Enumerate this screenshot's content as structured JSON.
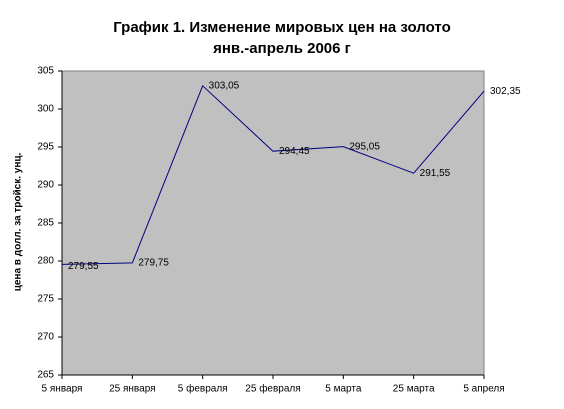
{
  "chart_data": {
    "type": "line",
    "title": "График 1. Изменение мировых цен на золото",
    "subtitle": "янв.-апрель 2006 г",
    "y_label": "цена в долл. за тройск. унц.",
    "categories": [
      "5 января",
      "25 января",
      "5 февраля",
      "25 февраля",
      "5 марта",
      "25 марта",
      "5 апреля"
    ],
    "values": [
      279.55,
      279.75,
      303.05,
      294.45,
      295.05,
      291.55,
      302.35
    ],
    "value_labels": [
      "279,55",
      "279,75",
      "303,05",
      "294,45",
      "295,05",
      "291,55",
      "302,35"
    ],
    "color": "#000080",
    "ylim": [
      265,
      305
    ],
    "yticks": [
      265,
      270,
      275,
      280,
      285,
      290,
      295,
      300,
      305
    ],
    "grid": false
  }
}
